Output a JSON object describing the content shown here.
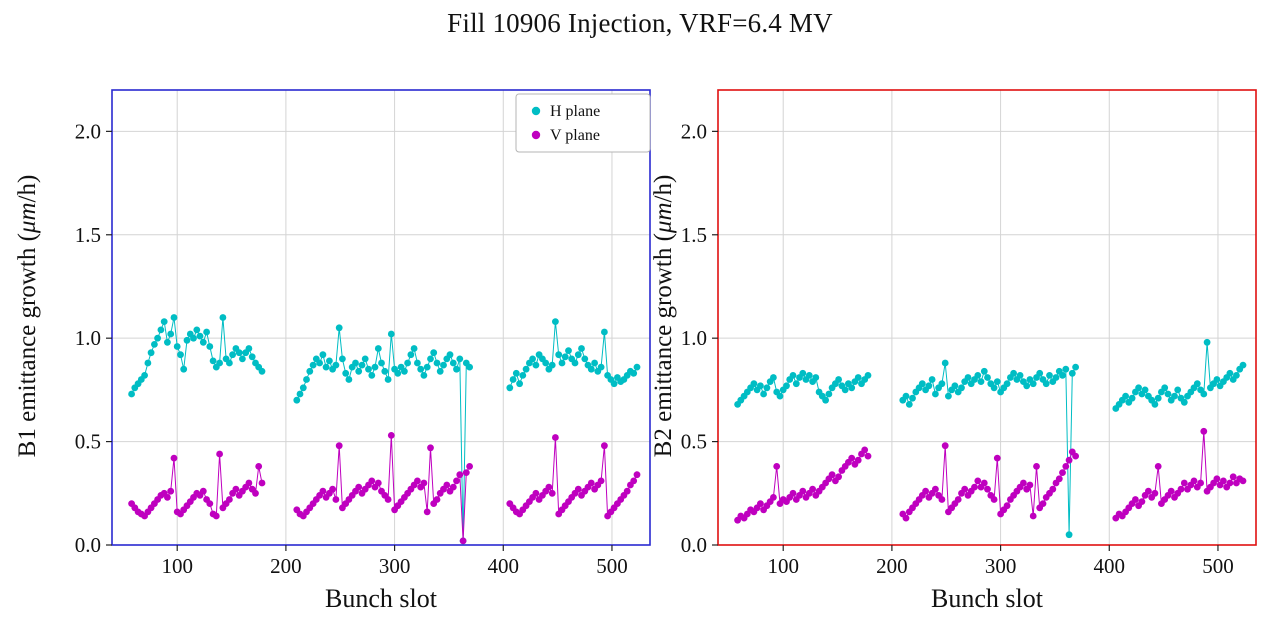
{
  "title": "Fill 10906 Injection, VRF=6.4 MV",
  "legend": {
    "items": [
      {
        "label": "H plane",
        "color": "#00bdc4"
      },
      {
        "label": "V plane",
        "color": "#bf00bf"
      }
    ]
  },
  "chart_data": [
    {
      "type": "scatter",
      "name": "B1",
      "spine_color": "#2a2ad0",
      "xlabel": "Bunch slot",
      "ylabel_prefix": "B1 emittance growth (",
      "ylabel_italic": "μm",
      "ylabel_suffix": "/h)",
      "xlim": [
        40,
        535
      ],
      "ylim": [
        0,
        2.2
      ],
      "xticks": [
        100,
        200,
        300,
        400,
        500
      ],
      "yticks": [
        0,
        0.5,
        1.0,
        1.5,
        2.0
      ],
      "ytick_labels": [
        "0.0",
        "0.5",
        "1.0",
        "1.5",
        "2.0"
      ],
      "grid": true,
      "legend": true,
      "series": [
        {
          "name": "H plane",
          "color": "#00bdc4",
          "segments": [
            {
              "x0": 58,
              "dx": 3,
              "y": [
                0.73,
                0.76,
                0.78,
                0.8,
                0.82,
                0.88,
                0.93,
                0.97,
                1.0,
                1.04,
                1.08,
                0.98,
                1.02,
                1.1,
                0.96,
                0.92,
                0.85,
                0.99,
                1.02,
                1.0,
                1.04,
                1.01,
                0.98,
                1.03,
                0.96,
                0.89,
                0.86,
                0.88,
                1.1,
                0.9,
                0.88,
                0.92,
                0.95,
                0.93,
                0.9,
                0.93,
                0.95,
                0.91,
                0.88,
                0.86,
                0.84
              ]
            },
            {
              "x0": 210,
              "dx": 3,
              "y": [
                0.7,
                0.73,
                0.76,
                0.8,
                0.84,
                0.87,
                0.9,
                0.88,
                0.92,
                0.86,
                0.89,
                0.85,
                0.87,
                1.05,
                0.9,
                0.83,
                0.8,
                0.86,
                0.88,
                0.84,
                0.87,
                0.9,
                0.85,
                0.82,
                0.86,
                0.95,
                0.88,
                0.84,
                0.8,
                1.02,
                0.85,
                0.83,
                0.86,
                0.84,
                0.88,
                0.92,
                0.95,
                0.88,
                0.85,
                0.82,
                0.86,
                0.9,
                0.93,
                0.88,
                0.84,
                0.87,
                0.9,
                0.92,
                0.88,
                0.85,
                0.9,
                0.02,
                0.88,
                0.86
              ]
            },
            {
              "x0": 406,
              "dx": 3,
              "y": [
                0.76,
                0.8,
                0.83,
                0.78,
                0.82,
                0.85,
                0.88,
                0.9,
                0.87,
                0.92,
                0.9,
                0.88,
                0.85,
                0.87,
                1.08,
                0.92,
                0.88,
                0.91,
                0.94,
                0.9,
                0.88,
                0.92,
                0.95,
                0.9,
                0.87,
                0.85,
                0.88,
                0.84,
                0.86,
                1.03,
                0.82,
                0.8,
                0.78,
                0.81,
                0.79,
                0.8,
                0.82,
                0.84,
                0.83,
                0.86
              ]
            }
          ]
        },
        {
          "name": "V plane",
          "color": "#bf00bf",
          "segments": [
            {
              "x0": 58,
              "dx": 3,
              "y": [
                0.2,
                0.18,
                0.16,
                0.15,
                0.14,
                0.16,
                0.18,
                0.2,
                0.22,
                0.24,
                0.25,
                0.23,
                0.26,
                0.42,
                0.16,
                0.15,
                0.17,
                0.19,
                0.21,
                0.23,
                0.25,
                0.24,
                0.26,
                0.22,
                0.2,
                0.15,
                0.14,
                0.44,
                0.18,
                0.2,
                0.22,
                0.25,
                0.27,
                0.24,
                0.26,
                0.28,
                0.3,
                0.27,
                0.25,
                0.38,
                0.3
              ]
            },
            {
              "x0": 210,
              "dx": 3,
              "y": [
                0.17,
                0.15,
                0.14,
                0.16,
                0.18,
                0.2,
                0.22,
                0.24,
                0.26,
                0.23,
                0.25,
                0.27,
                0.22,
                0.48,
                0.18,
                0.2,
                0.22,
                0.24,
                0.26,
                0.28,
                0.25,
                0.27,
                0.29,
                0.31,
                0.28,
                0.3,
                0.26,
                0.24,
                0.22,
                0.53,
                0.17,
                0.19,
                0.21,
                0.23,
                0.25,
                0.27,
                0.29,
                0.31,
                0.28,
                0.3,
                0.16,
                0.47,
                0.2,
                0.22,
                0.25,
                0.27,
                0.29,
                0.26,
                0.28,
                0.31,
                0.34,
                0.02,
                0.35,
                0.38
              ]
            },
            {
              "x0": 406,
              "dx": 3,
              "y": [
                0.2,
                0.18,
                0.16,
                0.15,
                0.17,
                0.19,
                0.21,
                0.23,
                0.25,
                0.22,
                0.24,
                0.26,
                0.28,
                0.25,
                0.52,
                0.15,
                0.17,
                0.19,
                0.21,
                0.23,
                0.25,
                0.27,
                0.24,
                0.26,
                0.28,
                0.3,
                0.27,
                0.29,
                0.31,
                0.48,
                0.14,
                0.16,
                0.18,
                0.2,
                0.22,
                0.24,
                0.26,
                0.29,
                0.31,
                0.34
              ]
            }
          ]
        }
      ]
    },
    {
      "type": "scatter",
      "name": "B2",
      "spine_color": "#e01010",
      "xlabel": "Bunch slot",
      "ylabel_prefix": "B2 emittance growth (",
      "ylabel_italic": "μm",
      "ylabel_suffix": "/h)",
      "xlim": [
        40,
        535
      ],
      "ylim": [
        0,
        2.2
      ],
      "xticks": [
        100,
        200,
        300,
        400,
        500
      ],
      "yticks": [
        0,
        0.5,
        1.0,
        1.5,
        2.0
      ],
      "ytick_labels": [
        "0.0",
        "0.5",
        "1.0",
        "1.5",
        "2.0"
      ],
      "grid": true,
      "legend": false,
      "series": [
        {
          "name": "H plane",
          "color": "#00bdc4",
          "segments": [
            {
              "x0": 58,
              "dx": 3,
              "y": [
                0.68,
                0.7,
                0.72,
                0.74,
                0.76,
                0.78,
                0.75,
                0.77,
                0.73,
                0.76,
                0.79,
                0.81,
                0.74,
                0.72,
                0.75,
                0.77,
                0.8,
                0.82,
                0.78,
                0.81,
                0.83,
                0.8,
                0.82,
                0.79,
                0.81,
                0.74,
                0.72,
                0.7,
                0.73,
                0.76,
                0.78,
                0.8,
                0.77,
                0.75,
                0.78,
                0.76,
                0.79,
                0.81,
                0.78,
                0.8,
                0.82
              ]
            },
            {
              "x0": 210,
              "dx": 3,
              "y": [
                0.7,
                0.72,
                0.68,
                0.71,
                0.74,
                0.76,
                0.78,
                0.75,
                0.77,
                0.8,
                0.73,
                0.76,
                0.78,
                0.88,
                0.72,
                0.75,
                0.77,
                0.74,
                0.76,
                0.79,
                0.81,
                0.78,
                0.8,
                0.82,
                0.79,
                0.84,
                0.81,
                0.78,
                0.76,
                0.79,
                0.74,
                0.76,
                0.78,
                0.81,
                0.83,
                0.8,
                0.82,
                0.79,
                0.77,
                0.8,
                0.78,
                0.81,
                0.83,
                0.8,
                0.78,
                0.82,
                0.79,
                0.81,
                0.84,
                0.82,
                0.85,
                0.05,
                0.83,
                0.86
              ]
            },
            {
              "x0": 406,
              "dx": 3,
              "y": [
                0.66,
                0.68,
                0.7,
                0.72,
                0.69,
                0.71,
                0.74,
                0.76,
                0.73,
                0.75,
                0.72,
                0.7,
                0.68,
                0.71,
                0.74,
                0.76,
                0.73,
                0.7,
                0.72,
                0.75,
                0.71,
                0.69,
                0.72,
                0.74,
                0.76,
                0.78,
                0.75,
                0.73,
                0.98,
                0.76,
                0.78,
                0.8,
                0.77,
                0.79,
                0.81,
                0.83,
                0.8,
                0.82,
                0.85,
                0.87
              ]
            }
          ]
        },
        {
          "name": "V plane",
          "color": "#bf00bf",
          "segments": [
            {
              "x0": 58,
              "dx": 3,
              "y": [
                0.12,
                0.14,
                0.13,
                0.15,
                0.17,
                0.16,
                0.18,
                0.2,
                0.17,
                0.19,
                0.21,
                0.23,
                0.38,
                0.2,
                0.22,
                0.21,
                0.23,
                0.25,
                0.22,
                0.24,
                0.26,
                0.23,
                0.25,
                0.27,
                0.24,
                0.26,
                0.28,
                0.3,
                0.32,
                0.34,
                0.31,
                0.33,
                0.36,
                0.38,
                0.4,
                0.42,
                0.39,
                0.41,
                0.44,
                0.46,
                0.43
              ]
            },
            {
              "x0": 210,
              "dx": 3,
              "y": [
                0.15,
                0.13,
                0.16,
                0.18,
                0.2,
                0.22,
                0.24,
                0.26,
                0.23,
                0.25,
                0.27,
                0.24,
                0.22,
                0.48,
                0.16,
                0.18,
                0.2,
                0.22,
                0.25,
                0.27,
                0.24,
                0.26,
                0.28,
                0.31,
                0.28,
                0.3,
                0.27,
                0.24,
                0.22,
                0.42,
                0.15,
                0.17,
                0.19,
                0.22,
                0.24,
                0.26,
                0.28,
                0.3,
                0.27,
                0.29,
                0.14,
                0.38,
                0.18,
                0.2,
                0.23,
                0.25,
                0.27,
                0.3,
                0.32,
                0.35,
                0.38,
                0.41,
                0.45,
                0.43
              ]
            },
            {
              "x0": 406,
              "dx": 3,
              "y": [
                0.13,
                0.15,
                0.14,
                0.16,
                0.18,
                0.2,
                0.22,
                0.19,
                0.21,
                0.24,
                0.26,
                0.23,
                0.25,
                0.38,
                0.2,
                0.22,
                0.24,
                0.26,
                0.23,
                0.25,
                0.27,
                0.3,
                0.27,
                0.29,
                0.31,
                0.28,
                0.3,
                0.55,
                0.26,
                0.28,
                0.3,
                0.32,
                0.29,
                0.31,
                0.28,
                0.3,
                0.33,
                0.3,
                0.32,
                0.31
              ]
            }
          ]
        }
      ]
    }
  ]
}
